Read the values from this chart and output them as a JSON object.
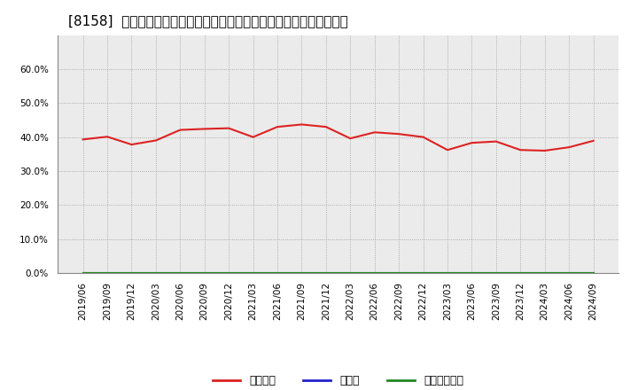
{
  "title": "[8158]  自己資本、のれん、繰延税金資産の総資産に対する比率の推移",
  "x_labels": [
    "2019/06",
    "2019/09",
    "2019/12",
    "2020/03",
    "2020/06",
    "2020/09",
    "2020/12",
    "2021/03",
    "2021/06",
    "2021/09",
    "2021/12",
    "2022/03",
    "2022/06",
    "2022/09",
    "2022/12",
    "2023/03",
    "2023/06",
    "2023/09",
    "2023/12",
    "2024/03",
    "2024/06",
    "2024/09"
  ],
  "equity_ratio": [
    0.393,
    0.401,
    0.378,
    0.39,
    0.421,
    0.424,
    0.426,
    0.4,
    0.43,
    0.437,
    0.43,
    0.396,
    0.414,
    0.409,
    0.4,
    0.362,
    0.383,
    0.387,
    0.362,
    0.36,
    0.37,
    0.389
  ],
  "goodwill_ratio": [
    0.0,
    0.0,
    0.0,
    0.0,
    0.0,
    0.0,
    0.0,
    0.0,
    0.0,
    0.0,
    0.0,
    0.0,
    0.0,
    0.0,
    0.0,
    0.0,
    0.0,
    0.0,
    0.0,
    0.0,
    0.0,
    0.0
  ],
  "deferred_tax_ratio": [
    0.0,
    0.0,
    0.0,
    0.0,
    0.0,
    0.0,
    0.0,
    0.0,
    0.0,
    0.0,
    0.0,
    0.0,
    0.0,
    0.0,
    0.0,
    0.0,
    0.0,
    0.0,
    0.0,
    0.0,
    0.0,
    0.0
  ],
  "equity_color": "#dd2222",
  "goodwill_color": "#2222cc",
  "deferred_tax_color": "#228822",
  "background_color": "#ffffff",
  "plot_bg_color": "#ebebeb",
  "grid_color": "#999999",
  "ylim": [
    0.0,
    0.7
  ],
  "yticks": [
    0.0,
    0.1,
    0.2,
    0.3,
    0.4,
    0.5,
    0.6
  ],
  "legend_labels": [
    "自己資本",
    "のれん",
    "繰延税金資産"
  ],
  "title_fontsize": 11,
  "tick_fontsize": 7.5,
  "legend_fontsize": 9
}
